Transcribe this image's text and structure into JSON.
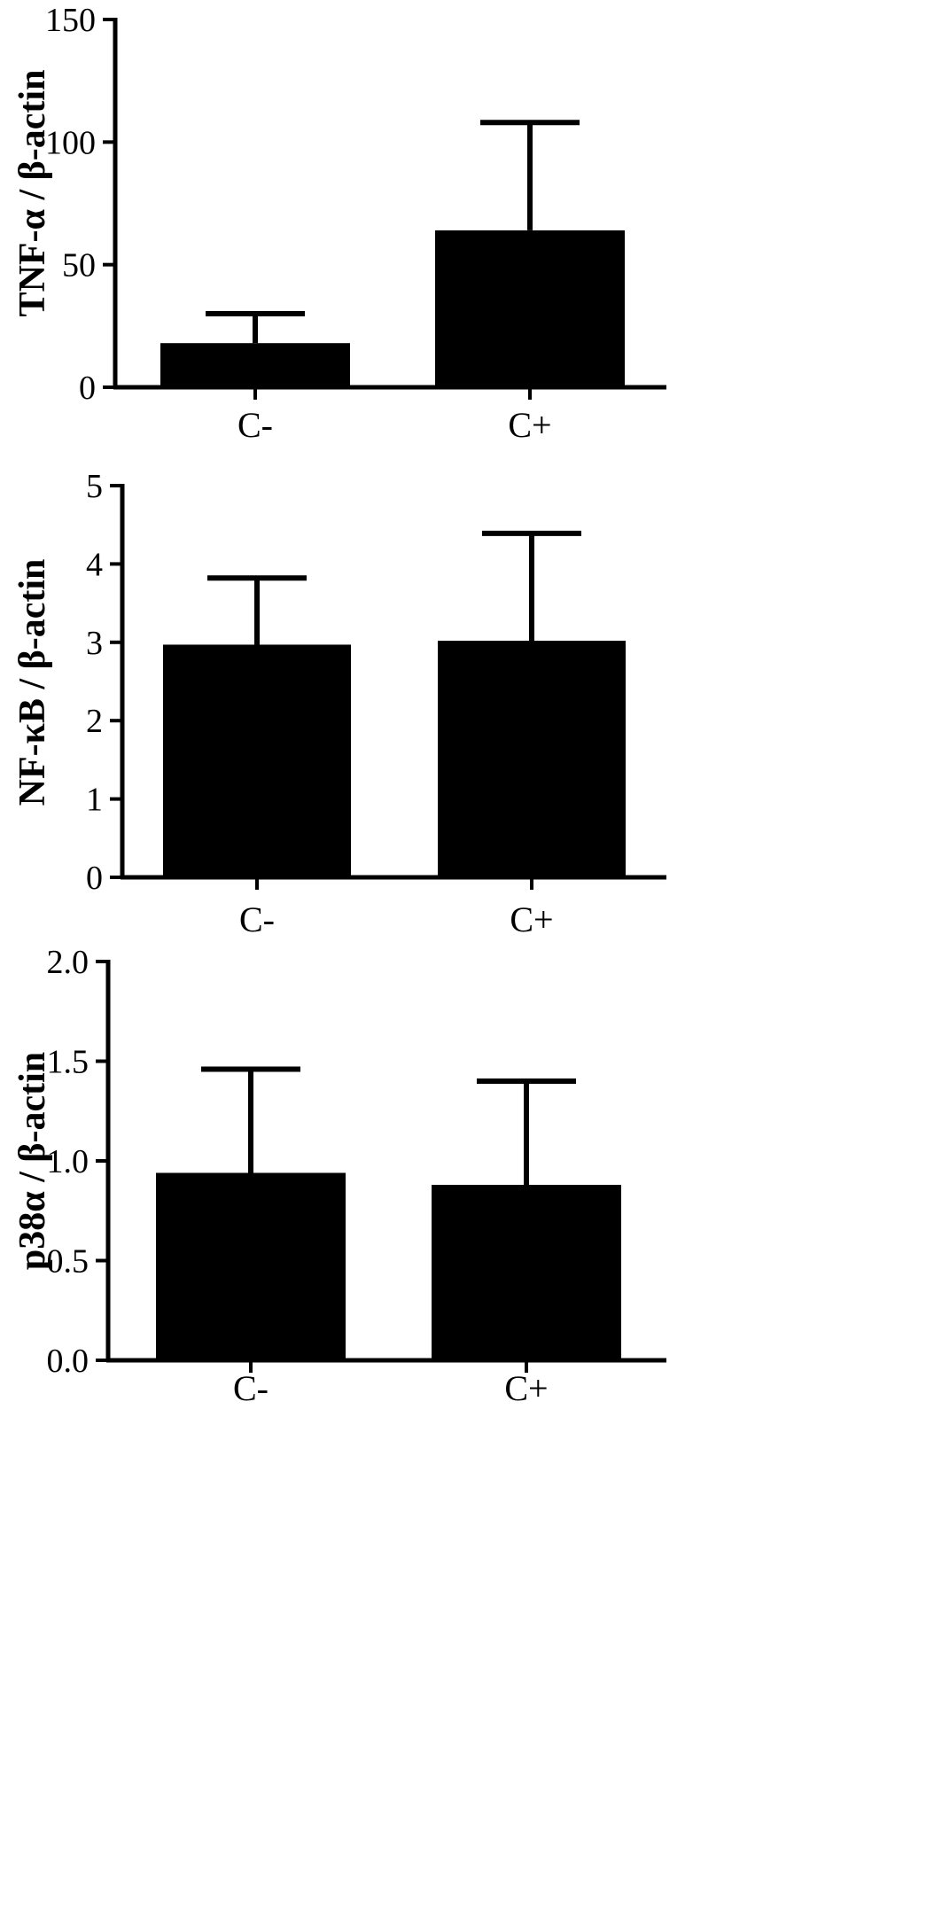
{
  "chart_data": [
    {
      "type": "bar",
      "title": "",
      "xlabel": "",
      "ylabel": "TNF-α / β-actin",
      "categories": [
        "C-",
        "C+"
      ],
      "series": [
        {
          "values": [
            18,
            64
          ],
          "error": [
            12,
            44
          ]
        }
      ],
      "ylim": [
        0,
        150
      ],
      "yticks": [
        "0",
        "50",
        "100",
        "150"
      ],
      "ytick_values": [
        0,
        50,
        100,
        150
      ],
      "grid": false,
      "bar_color": "#000000"
    },
    {
      "type": "bar",
      "title": "",
      "xlabel": "",
      "ylabel": "NF-κB / β-actin",
      "categories": [
        "C-",
        "C+"
      ],
      "series": [
        {
          "values": [
            2.97,
            3.02
          ],
          "error": [
            0.85,
            1.37
          ]
        }
      ],
      "ylim": [
        0,
        5
      ],
      "yticks": [
        "0",
        "1",
        "2",
        "3",
        "4",
        "5"
      ],
      "ytick_values": [
        0,
        1,
        2,
        3,
        4,
        5
      ],
      "grid": false,
      "bar_color": "#000000"
    },
    {
      "type": "bar",
      "title": "",
      "xlabel": "",
      "ylabel": "p38α / β-actin",
      "categories": [
        "C-",
        "C+"
      ],
      "series": [
        {
          "values": [
            0.94,
            0.88
          ],
          "error": [
            0.52,
            0.52
          ]
        }
      ],
      "ylim": [
        0,
        2
      ],
      "yticks": [
        "0.0",
        "0.5",
        "1.0",
        "1.5",
        "2.0"
      ],
      "ytick_values": [
        0,
        0.5,
        1,
        1.5,
        2
      ],
      "grid": false,
      "bar_color": "#000000"
    }
  ]
}
